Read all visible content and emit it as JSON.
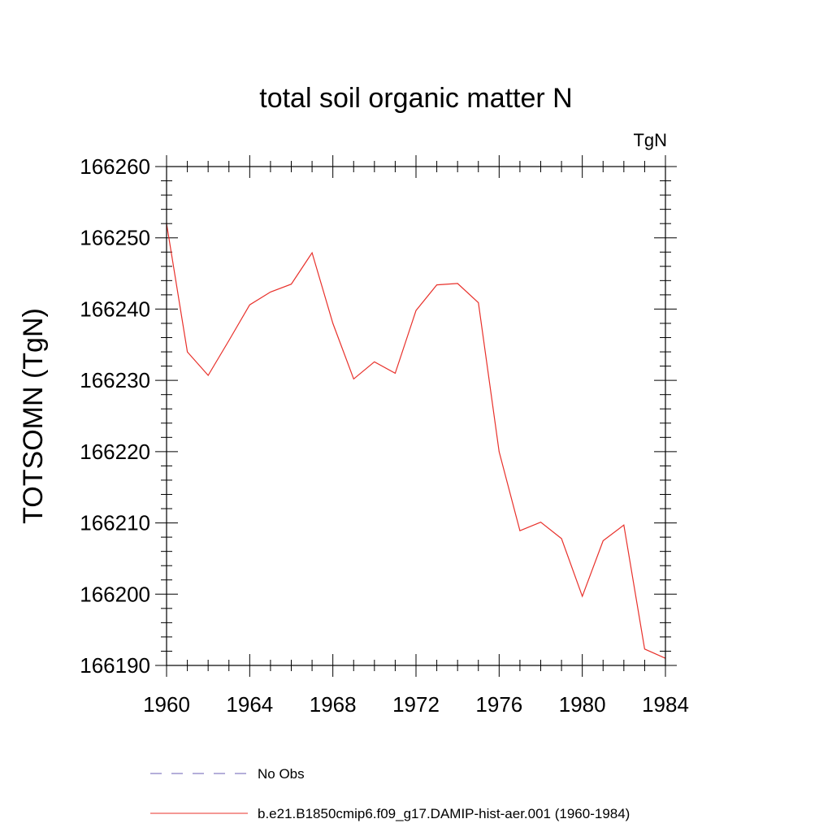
{
  "chart_data": {
    "type": "line",
    "title": "total soil organic matter N",
    "units_label": "TgN",
    "ylabel": "TOTSOMN  (TgN)",
    "xlabel": "",
    "xlim": [
      1960,
      1984
    ],
    "ylim": [
      166190,
      166260
    ],
    "x_ticks": [
      1960,
      1964,
      1968,
      1972,
      1976,
      1980,
      1984
    ],
    "y_ticks": [
      166190,
      166200,
      166210,
      166220,
      166230,
      166240,
      166250,
      166260
    ],
    "grid": false,
    "legend_position": "bottom",
    "series": [
      {
        "name": "No Obs",
        "color": "#6b5fb5",
        "dash": "dashed",
        "x": [],
        "y": []
      },
      {
        "name": "b.e21.B1850cmip6.f09_g17.DAMIP-hist-aer.001 (1960-1984)",
        "color": "#e8302a",
        "dash": "solid",
        "x": [
          1960,
          1961,
          1962,
          1963,
          1964,
          1965,
          1966,
          1967,
          1968,
          1969,
          1970,
          1971,
          1972,
          1973,
          1974,
          1975,
          1976,
          1977,
          1978,
          1979,
          1980,
          1981,
          1982,
          1983,
          1984
        ],
        "y": [
          166252,
          166234,
          166230.7,
          166235.6,
          166240.6,
          166242.4,
          166243.5,
          166247.9,
          166238,
          166230.2,
          166232.6,
          166231,
          166239.8,
          166243.4,
          166243.6,
          166240.9,
          166220,
          166208.9,
          166210.1,
          166207.8,
          166199.7,
          166207.5,
          166209.7,
          166192.3,
          166191
        ]
      }
    ]
  }
}
